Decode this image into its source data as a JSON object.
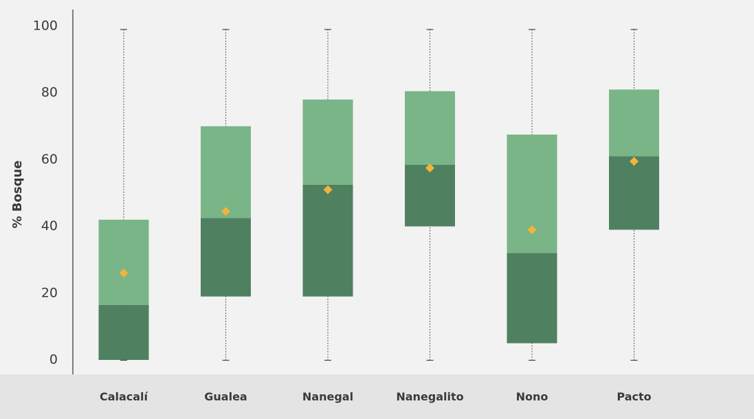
{
  "chart_data": {
    "type": "box",
    "title": "",
    "xlabel": "",
    "ylabel": "% Bosque",
    "ylim": [
      0,
      100
    ],
    "yticks": [
      0,
      20,
      40,
      60,
      80,
      100
    ],
    "grid": false,
    "colors": {
      "upper_box": "#7ab587",
      "lower_box": "#4f8160",
      "mean_marker": "#f2b43b",
      "background": "#f2f2f2",
      "label_band": "#e4e4e4"
    },
    "categories": [
      "Calacalí",
      "Gualea",
      "Nanegal",
      "Nanegalito",
      "Nono",
      "Pacto"
    ],
    "boxes": [
      {
        "name": "Calacalí",
        "min": 0,
        "q1": 0,
        "median": 16.5,
        "q3": 42,
        "max": 99,
        "mean": 26
      },
      {
        "name": "Gualea",
        "min": 0,
        "q1": 19,
        "median": 42.5,
        "q3": 70,
        "max": 99,
        "mean": 44.5
      },
      {
        "name": "Nanegal",
        "min": 0,
        "q1": 19,
        "median": 52.5,
        "q3": 78,
        "max": 99,
        "mean": 51
      },
      {
        "name": "Nanegalito",
        "min": 0,
        "q1": 40,
        "median": 58.5,
        "q3": 80.5,
        "max": 99,
        "mean": 57.5
      },
      {
        "name": "Nono",
        "min": 0,
        "q1": 5,
        "median": 32,
        "q3": 67.5,
        "max": 99,
        "mean": 39
      },
      {
        "name": "Pacto",
        "min": 0,
        "q1": 39,
        "median": 61,
        "q3": 81,
        "max": 99,
        "mean": 59.5
      }
    ]
  }
}
